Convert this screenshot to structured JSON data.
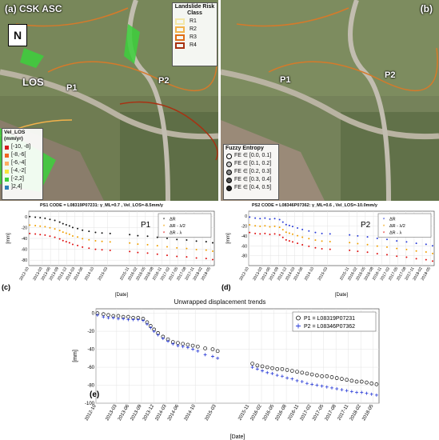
{
  "map_a": {
    "label": "(a) CSK ASC",
    "north": "N",
    "los": "LOS",
    "p1": "P1",
    "p2": "P2",
    "risk_title": "Landslide Risk Class",
    "risk_classes": [
      {
        "label": "R1",
        "color": "#f3e7a6"
      },
      {
        "label": "R2",
        "color": "#f2b24b"
      },
      {
        "label": "R3",
        "color": "#e06d17"
      },
      {
        "label": "R4",
        "color": "#a83112"
      }
    ],
    "vel_title": "Vel_LOS (mm/yr)",
    "vel_classes": [
      {
        "label": "[-10, -8]",
        "color": "#d7191c"
      },
      {
        "label": "[-8,-6[",
        "color": "#f26522"
      },
      {
        "label": "[-6,-4[",
        "color": "#fdae61"
      },
      {
        "label": "[-4,-2[",
        "color": "#f6e53b"
      },
      {
        "label": "[-2,2]",
        "color": "#3cd03c"
      },
      {
        "label": "]2,4]",
        "color": "#2c7fb8"
      }
    ]
  },
  "map_b": {
    "label": "(b)",
    "p1": "P1",
    "p2": "P2",
    "fe_title": "Fuzzy Entropy",
    "fe_classes": [
      {
        "label": "FE ∈ [0.0, 0.1]",
        "color": "#ffffff"
      },
      {
        "label": "FE ∈ [0.1, 0.2]",
        "color": "#cccccc"
      },
      {
        "label": "FE ∈ [0.2, 0.3]",
        "color": "#888888"
      },
      {
        "label": "FE ∈ [0.3, 0.4]",
        "color": "#555555"
      },
      {
        "label": "FE ∈ [0.4, 0.5]",
        "color": "#222222"
      }
    ]
  },
  "chart_data": [
    {
      "id": "c",
      "type": "scatter",
      "panel_label": "(c)",
      "title": "PS1 CODE = L08319P07231: γ_ML=0.7 , Vel_LOS=-8.5mm/y",
      "point_label": "P1",
      "xlabel": "[Date]",
      "ylabel": "[mm]",
      "ylim": [
        -90,
        10
      ],
      "yticks": [
        0,
        -20,
        -40,
        -60,
        -80
      ],
      "xlim": [
        2012.75,
        2018.45
      ],
      "xticks": [
        "2012-10",
        "2013-03",
        "2013-06",
        "2013-09",
        "2013-12",
        "2014-03",
        "2014-06",
        "2014-10",
        "2015-03",
        "2015-11",
        "2016-02",
        "2016-05",
        "2016-08",
        "2016-11",
        "2017-02",
        "2017-05",
        "2017-08",
        "2017-11",
        "2018-02",
        "2018-05"
      ],
      "series": [
        {
          "name": "ΔR",
          "color": "#111111",
          "offset": 0
        },
        {
          "name": "ΔR - λ/2",
          "color": "#f0a000",
          "offset": -15.5
        },
        {
          "name": "ΔR - λ",
          "color": "#e01010",
          "offset": -31
        }
      ],
      "base_points": [
        [
          2012.78,
          0
        ],
        [
          2012.95,
          -1
        ],
        [
          2013.1,
          -2
        ],
        [
          2013.25,
          -3
        ],
        [
          2013.4,
          -5
        ],
        [
          2013.55,
          -7
        ],
        [
          2013.7,
          -10
        ],
        [
          2013.8,
          -13
        ],
        [
          2013.9,
          -15
        ],
        [
          2014.0,
          -17
        ],
        [
          2014.1,
          -20
        ],
        [
          2014.25,
          -22
        ],
        [
          2014.4,
          -25
        ],
        [
          2014.6,
          -27
        ],
        [
          2014.8,
          -29
        ],
        [
          2015.0,
          -30
        ],
        [
          2015.25,
          -31
        ],
        [
          2015.85,
          -33
        ],
        [
          2016.1,
          -35
        ],
        [
          2016.4,
          -36
        ],
        [
          2016.7,
          -38
        ],
        [
          2017.0,
          -40
        ],
        [
          2017.3,
          -42
        ],
        [
          2017.6,
          -43
        ],
        [
          2017.9,
          -45
        ],
        [
          2018.2,
          -46
        ],
        [
          2018.4,
          -48
        ]
      ]
    },
    {
      "id": "d",
      "type": "scatter",
      "panel_label": "(d)",
      "title": "PS2 CODE = L08346P07362: γ_ML=0.6 , Vel_LOS=-10.0mm/y",
      "point_label": "P2",
      "xlabel": "[Date]",
      "ylabel": "[mm]",
      "ylim": [
        -100,
        10
      ],
      "yticks": [
        0,
        -20,
        -40,
        -60,
        -80
      ],
      "xlim": [
        2012.75,
        2018.45
      ],
      "xticks": [
        "2012-10",
        "2013-03",
        "2013-06",
        "2013-09",
        "2013-12",
        "2014-03",
        "2014-06",
        "2014-10",
        "2015-03",
        "2015-11",
        "2016-02",
        "2016-05",
        "2016-08",
        "2016-11",
        "2017-02",
        "2017-05",
        "2017-08",
        "2017-11",
        "2018-02",
        "2018-05"
      ],
      "series": [
        {
          "name": "ΔR",
          "color": "#2a3cd8",
          "offset": 0
        },
        {
          "name": "ΔR - λ/2",
          "color": "#f0a000",
          "offset": -15.5
        },
        {
          "name": "ΔR - λ",
          "color": "#e01010",
          "offset": -31
        }
      ],
      "base_points": [
        [
          2012.78,
          -2
        ],
        [
          2012.95,
          -4
        ],
        [
          2013.1,
          -5
        ],
        [
          2013.25,
          -4
        ],
        [
          2013.4,
          -6
        ],
        [
          2013.55,
          -5
        ],
        [
          2013.7,
          -7
        ],
        [
          2013.8,
          -12
        ],
        [
          2013.9,
          -17
        ],
        [
          2014.0,
          -19
        ],
        [
          2014.1,
          -21
        ],
        [
          2014.25,
          -24
        ],
        [
          2014.4,
          -27
        ],
        [
          2014.6,
          -30
        ],
        [
          2014.8,
          -33
        ],
        [
          2015.0,
          -35
        ],
        [
          2015.25,
          -36
        ],
        [
          2015.85,
          -38
        ],
        [
          2016.1,
          -40
        ],
        [
          2016.4,
          -42
        ],
        [
          2016.7,
          -45
        ],
        [
          2017.0,
          -47
        ],
        [
          2017.3,
          -50
        ],
        [
          2017.6,
          -52
        ],
        [
          2017.9,
          -55
        ],
        [
          2018.2,
          -57
        ],
        [
          2018.4,
          -60
        ]
      ]
    },
    {
      "id": "e",
      "type": "scatter",
      "panel_label": "(e)",
      "title": "Unwrapped displacement trends",
      "xlabel": "[Date]",
      "ylabel": "[mm]",
      "ylim": [
        -100,
        5
      ],
      "yticks": [
        0,
        -20,
        -40,
        -60,
        -80,
        -100
      ],
      "xlim": [
        2012.75,
        2018.45
      ],
      "xticks": [
        "2012-10",
        "2013-03",
        "2013-06",
        "2013-09",
        "2013-12",
        "2014-03",
        "2014-06",
        "2014-10",
        "2015-03",
        "2015-11",
        "2016-02",
        "2016-05",
        "2016-08",
        "2016-11",
        "2017-02",
        "2017-05",
        "2017-08",
        "2017-11",
        "2018-02",
        "2018-05"
      ],
      "series": [
        {
          "name": "P1 = L08319P07231",
          "marker": "circle",
          "color": "#111111",
          "points": [
            [
              2012.78,
              0
            ],
            [
              2012.9,
              -1
            ],
            [
              2013.0,
              -2
            ],
            [
              2013.1,
              -3
            ],
            [
              2013.2,
              -3
            ],
            [
              2013.3,
              -4
            ],
            [
              2013.4,
              -4
            ],
            [
              2013.5,
              -5
            ],
            [
              2013.6,
              -5
            ],
            [
              2013.7,
              -6
            ],
            [
              2013.78,
              -10
            ],
            [
              2013.85,
              -14
            ],
            [
              2013.92,
              -18
            ],
            [
              2014.0,
              -22
            ],
            [
              2014.1,
              -26
            ],
            [
              2014.2,
              -29
            ],
            [
              2014.3,
              -32
            ],
            [
              2014.4,
              -33
            ],
            [
              2014.5,
              -34
            ],
            [
              2014.6,
              -35
            ],
            [
              2014.7,
              -36
            ],
            [
              2014.8,
              -37
            ],
            [
              2014.95,
              -39
            ],
            [
              2015.1,
              -40
            ],
            [
              2015.2,
              -42
            ],
            [
              2015.9,
              -56
            ],
            [
              2016.0,
              -58
            ],
            [
              2016.1,
              -59
            ],
            [
              2016.2,
              -60
            ],
            [
              2016.3,
              -61
            ],
            [
              2016.4,
              -62
            ],
            [
              2016.5,
              -62
            ],
            [
              2016.6,
              -63
            ],
            [
              2016.7,
              -64
            ],
            [
              2016.8,
              -65
            ],
            [
              2016.9,
              -66
            ],
            [
              2017.0,
              -67
            ],
            [
              2017.1,
              -68
            ],
            [
              2017.2,
              -69
            ],
            [
              2017.3,
              -70
            ],
            [
              2017.4,
              -70
            ],
            [
              2017.5,
              -71
            ],
            [
              2017.6,
              -72
            ],
            [
              2017.7,
              -73
            ],
            [
              2017.8,
              -74
            ],
            [
              2017.9,
              -75
            ],
            [
              2018.0,
              -76
            ],
            [
              2018.1,
              -76
            ],
            [
              2018.2,
              -77
            ],
            [
              2018.3,
              -78
            ],
            [
              2018.4,
              -79
            ]
          ]
        },
        {
          "name": "P2 = L08346P07362",
          "marker": "plus",
          "color": "#2a3cd8",
          "points": [
            [
              2012.78,
              -2
            ],
            [
              2012.9,
              -4
            ],
            [
              2013.0,
              -5
            ],
            [
              2013.1,
              -5
            ],
            [
              2013.2,
              -6
            ],
            [
              2013.3,
              -6
            ],
            [
              2013.4,
              -7
            ],
            [
              2013.5,
              -7
            ],
            [
              2013.6,
              -7
            ],
            [
              2013.7,
              -8
            ],
            [
              2013.78,
              -12
            ],
            [
              2013.85,
              -16
            ],
            [
              2013.92,
              -20
            ],
            [
              2014.0,
              -24
            ],
            [
              2014.1,
              -28
            ],
            [
              2014.2,
              -31
            ],
            [
              2014.3,
              -34
            ],
            [
              2014.4,
              -36
            ],
            [
              2014.5,
              -37
            ],
            [
              2014.6,
              -38
            ],
            [
              2014.7,
              -40
            ],
            [
              2014.8,
              -42
            ],
            [
              2014.95,
              -46
            ],
            [
              2015.1,
              -48
            ],
            [
              2015.2,
              -50
            ],
            [
              2015.9,
              -60
            ],
            [
              2016.0,
              -62
            ],
            [
              2016.1,
              -64
            ],
            [
              2016.2,
              -66
            ],
            [
              2016.3,
              -67
            ],
            [
              2016.4,
              -69
            ],
            [
              2016.5,
              -70
            ],
            [
              2016.6,
              -72
            ],
            [
              2016.7,
              -73
            ],
            [
              2016.8,
              -75
            ],
            [
              2016.9,
              -76
            ],
            [
              2017.0,
              -78
            ],
            [
              2017.1,
              -79
            ],
            [
              2017.2,
              -80
            ],
            [
              2017.3,
              -81
            ],
            [
              2017.4,
              -82
            ],
            [
              2017.5,
              -83
            ],
            [
              2017.6,
              -84
            ],
            [
              2017.7,
              -85
            ],
            [
              2017.8,
              -86
            ],
            [
              2017.9,
              -87
            ],
            [
              2018.0,
              -88
            ],
            [
              2018.1,
              -88
            ],
            [
              2018.2,
              -89
            ],
            [
              2018.3,
              -90
            ],
            [
              2018.4,
              -91
            ]
          ]
        }
      ]
    }
  ]
}
